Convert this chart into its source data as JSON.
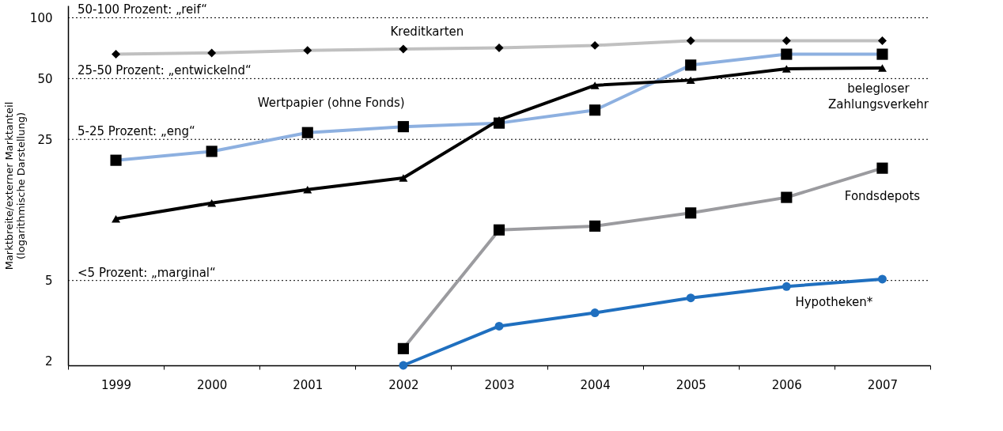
{
  "chart_data": {
    "type": "line",
    "ylabel": "Marktbreite/externer Marktanteil\n(logarithmische Darstellung)",
    "categories": [
      "1999",
      "2000",
      "2001",
      "2002",
      "2003",
      "2004",
      "2005",
      "2006",
      "2007"
    ],
    "log": "y",
    "ylim": [
      1.9,
      115
    ],
    "yticks": [
      2,
      5,
      25,
      50,
      100
    ],
    "grid": false,
    "line_style": "solid",
    "series": [
      {
        "name": "Kreditkarten",
        "color": "#c0c0c0",
        "marker": "diamond",
        "values": [
          66,
          67,
          69,
          70,
          71,
          73,
          77,
          77,
          77
        ]
      },
      {
        "name": "Wertpapier (ohne Fonds)",
        "color": "#8db0e0",
        "marker": "square",
        "values": [
          19.7,
          21.8,
          27,
          28.9,
          30.1,
          34.9,
          58.3,
          66,
          66
        ]
      },
      {
        "name": "belegloser Zahlungsverkehr",
        "color": "#000000",
        "marker": "triangle",
        "values": [
          10.1,
          12.1,
          14.1,
          16.1,
          31.2,
          46.3,
          49.1,
          55.9,
          56.4
        ]
      },
      {
        "name": "Fondsdepots",
        "color": "#9b9b9f",
        "marker": "square",
        "values": [
          null,
          null,
          null,
          2.3,
          8.9,
          9.3,
          10.8,
          12.9,
          18.0
        ]
      },
      {
        "name": "Hypotheken*",
        "color": "#1f6fbf",
        "marker": "circle",
        "values": [
          null,
          null,
          null,
          1.9,
          2.97,
          3.46,
          4.1,
          4.67,
          5.08
        ]
      }
    ],
    "ref_lines": [
      {
        "axis": "y",
        "value": 100,
        "label": "50-100 Prozent: „reif“",
        "line_style": "dotted",
        "color": "#000000"
      },
      {
        "axis": "y",
        "value": 50,
        "label": "25-50 Prozent: „entwickelnd“",
        "line_style": "dotted",
        "color": "#000000"
      },
      {
        "axis": "y",
        "value": 25,
        "label": "5-25 Prozent: „eng“",
        "line_style": "dotted",
        "color": "#000000"
      },
      {
        "axis": "y",
        "value": 5,
        "label": "<5 Prozent: „marginal“",
        "line_style": "dotted",
        "color": "#000000"
      }
    ]
  }
}
